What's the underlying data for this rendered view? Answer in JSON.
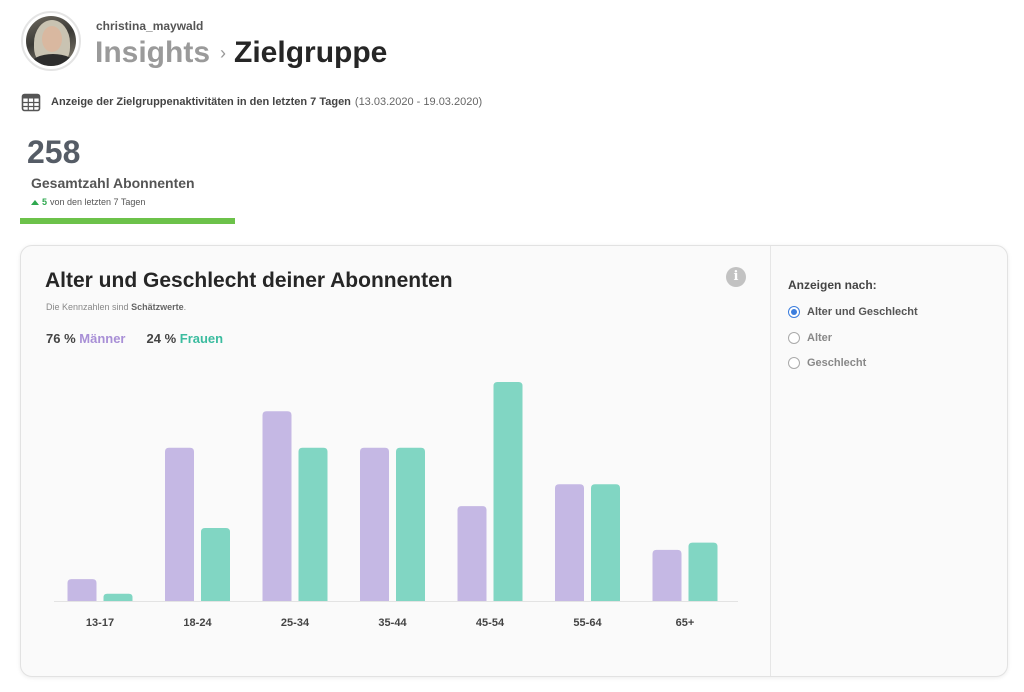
{
  "header": {
    "username": "christina_maywald",
    "breadcrumb_root": "Insights",
    "breadcrumb_separator": "›",
    "breadcrumb_current": "Zielgruppe"
  },
  "period": {
    "icon": "calendar-icon",
    "label": "Anzeige der Zielgruppenaktivitäten in den letzten 7 Tagen",
    "range": "(13.03.2020 - 19.03.2020)"
  },
  "followers": {
    "total": "258",
    "label": "Gesamtzahl Abonnenten",
    "delta": "5",
    "delta_text": "von den letzten 7 Tagen",
    "accent_color": "#6cc24a"
  },
  "card": {
    "title": "Alter und Geschlecht deiner Abonnenten",
    "subtitle_prefix": "Die Kennzahlen sind ",
    "subtitle_bold": "Schätzwerte",
    "subtitle_suffix": ".",
    "info_icon": "i",
    "men_pct": "76 %",
    "men_label": "Männer",
    "women_pct": "24 %",
    "women_label": "Frauen"
  },
  "sidebar": {
    "title": "Anzeigen nach:",
    "options": [
      {
        "label": "Alter und Geschlecht",
        "selected": true
      },
      {
        "label": "Alter",
        "selected": false
      },
      {
        "label": "Geschlecht",
        "selected": false
      }
    ]
  },
  "chart_data": {
    "type": "bar",
    "categories": [
      "13-17",
      "18-24",
      "25-34",
      "35-44",
      "45-54",
      "55-64",
      "65+"
    ],
    "series": [
      {
        "name": "Männer",
        "color": "#c5b8e4",
        "values": [
          3,
          21,
          26,
          21,
          13,
          16,
          7
        ]
      },
      {
        "name": "Frauen",
        "color": "#81d6c3",
        "values": [
          1,
          10,
          21,
          21,
          30,
          16,
          8
        ]
      }
    ],
    "ylim": [
      0,
      30
    ],
    "grid": false
  }
}
